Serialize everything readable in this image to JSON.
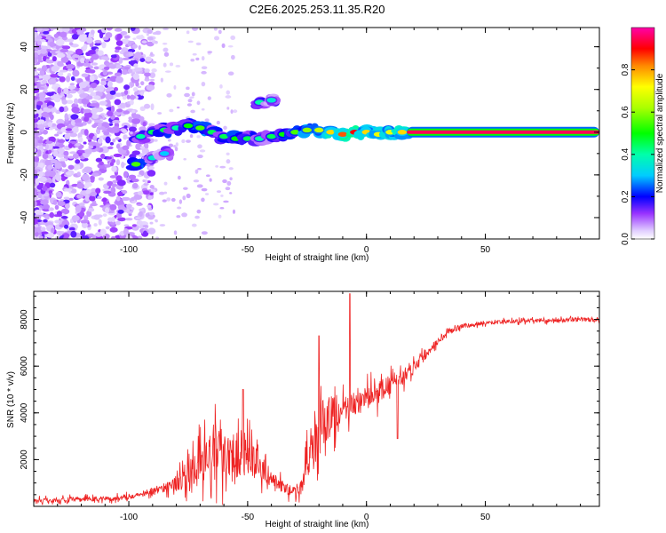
{
  "title": "C2E6.2025.253.11.35.R20",
  "chart_data": [
    {
      "type": "heatmap",
      "name": "spectrogram",
      "xlabel": "Height of straight line (km)",
      "ylabel": "Frequency (Hz)",
      "xlim": [
        -140,
        98
      ],
      "ylim": [
        -50,
        49
      ],
      "xticks": [
        -100,
        -50,
        0,
        50
      ],
      "xtick_labels": [
        "-100",
        "-50",
        "0",
        "50"
      ],
      "yticks": [
        -40,
        -20,
        0,
        20,
        40
      ],
      "ytick_labels": [
        "-40",
        "-20",
        "0",
        "20",
        "40"
      ],
      "colorbar": {
        "label": "Normalized spectral amplitude",
        "range": [
          0,
          1
        ],
        "ticks": [
          0.0,
          0.2,
          0.4,
          0.6,
          0.8
        ],
        "tick_labels": [
          "0.0",
          "0.2",
          "0.4",
          "0.6",
          "0.8"
        ]
      },
      "ridge": [
        {
          "x": -97,
          "y": -15,
          "a": 0.55
        },
        {
          "x": -90,
          "y": -12,
          "a": 0.35
        },
        {
          "x": -85,
          "y": -10,
          "a": 0.3
        },
        {
          "x": -95,
          "y": -2,
          "a": 0.4
        },
        {
          "x": -90,
          "y": 0,
          "a": 0.45
        },
        {
          "x": -85,
          "y": 1,
          "a": 0.45
        },
        {
          "x": -80,
          "y": 2,
          "a": 0.4
        },
        {
          "x": -75,
          "y": 3,
          "a": 0.5
        },
        {
          "x": -70,
          "y": 2,
          "a": 0.55
        },
        {
          "x": -65,
          "y": 0,
          "a": 0.45
        },
        {
          "x": -60,
          "y": -2,
          "a": 0.45
        },
        {
          "x": -55,
          "y": -3,
          "a": 0.5
        },
        {
          "x": -50,
          "y": -3,
          "a": 0.45
        },
        {
          "x": -45,
          "y": -3,
          "a": 0.4
        },
        {
          "x": -40,
          "y": -2,
          "a": 0.45
        },
        {
          "x": -35,
          "y": -1,
          "a": 0.5
        },
        {
          "x": -30,
          "y": 0,
          "a": 0.55
        },
        {
          "x": -25,
          "y": 1,
          "a": 0.6
        },
        {
          "x": -20,
          "y": 1,
          "a": 0.65
        },
        {
          "x": -15,
          "y": 0,
          "a": 0.75
        },
        {
          "x": -10,
          "y": -1,
          "a": 0.85
        },
        {
          "x": -5,
          "y": 0,
          "a": 0.9
        },
        {
          "x": 0,
          "y": 0,
          "a": 0.75
        },
        {
          "x": 5,
          "y": -1,
          "a": 0.7
        },
        {
          "x": 10,
          "y": 0,
          "a": 0.7
        },
        {
          "x": 15,
          "y": 0,
          "a": 0.75
        },
        {
          "x": -45,
          "y": 14,
          "a": 0.4
        },
        {
          "x": -40,
          "y": 15,
          "a": 0.35
        }
      ],
      "band": {
        "x_start": 17,
        "x_end": 98,
        "y": 0,
        "a": 0.95
      }
    },
    {
      "type": "line",
      "name": "snr",
      "xlabel": "Height of straight line (km)",
      "ylabel": "SNR (10 * v/v)",
      "xlim": [
        -140,
        98
      ],
      "ylim": [
        0,
        9200
      ],
      "xticks": [
        -100,
        -50,
        0,
        50
      ],
      "xtick_labels": [
        "-100",
        "-50",
        "0",
        "50"
      ],
      "yticks": [
        2000,
        4000,
        6000,
        8000
      ],
      "ytick_labels": [
        "2000",
        "4000",
        "6000",
        "8000"
      ],
      "color": "#ee2222",
      "series": [
        {
          "name": "SNR",
          "x": [
            -140,
            -120,
            -105,
            -95,
            -85,
            -80,
            -75,
            -70,
            -65,
            -60,
            -55,
            -50,
            -45,
            -40,
            -35,
            -30,
            -27,
            -25,
            -22,
            -20,
            -18,
            -15,
            -12,
            -10,
            -8,
            -5,
            -2,
            0,
            5,
            10,
            15,
            20,
            25,
            30,
            35,
            40,
            50,
            60,
            70,
            80,
            90,
            98
          ],
          "y": [
            250,
            300,
            350,
            500,
            800,
            1000,
            1300,
            1800,
            2200,
            2400,
            2300,
            2100,
            1700,
            1200,
            800,
            600,
            900,
            1800,
            2600,
            3200,
            3600,
            3900,
            3800,
            4000,
            4200,
            4400,
            4500,
            4600,
            4900,
            5200,
            5500,
            6000,
            6500,
            7100,
            7500,
            7700,
            7850,
            7900,
            7950,
            7950,
            8000,
            7950
          ],
          "noise": [
            150,
            150,
            150,
            150,
            300,
            500,
            800,
            1200,
            1400,
            1600,
            1400,
            1200,
            800,
            500,
            400,
            300,
            500,
            1000,
            1400,
            1600,
            1500,
            1300,
            1000,
            900,
            900,
            700,
            700,
            700,
            700,
            600,
            500,
            400,
            300,
            200,
            150,
            150,
            120,
            120,
            120,
            120,
            120,
            120
          ]
        }
      ],
      "peaks": [
        {
          "x": -52,
          "y": 5000
        },
        {
          "x": -20,
          "y": 7300
        },
        {
          "x": -7,
          "y": 9100
        },
        {
          "x": 13,
          "y": 2900
        }
      ]
    }
  ]
}
